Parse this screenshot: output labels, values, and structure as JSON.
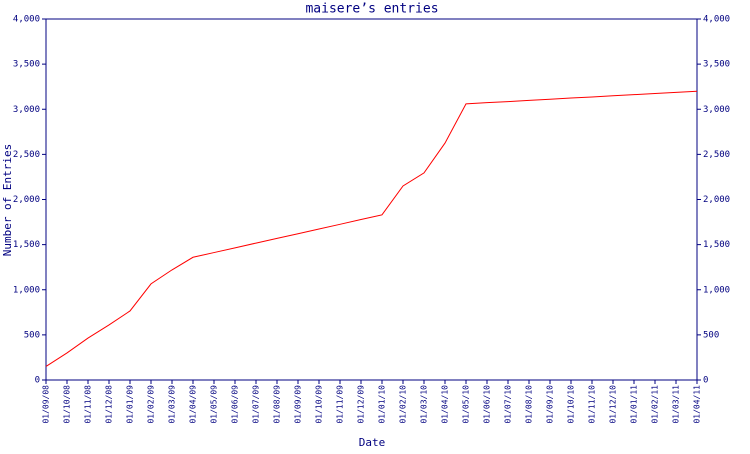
{
  "chart_data": {
    "type": "line",
    "title": "maisere’s entries",
    "x_label": "Date",
    "y_label": "Number of Entries",
    "categories": [
      "01/09/08",
      "01/10/08",
      "01/11/08",
      "01/12/08",
      "01/01/09",
      "01/02/09",
      "01/03/09",
      "01/04/09",
      "01/05/09",
      "01/06/09",
      "01/07/09",
      "01/08/09",
      "01/09/09",
      "01/10/09",
      "01/11/09",
      "01/12/09",
      "01/01/10",
      "01/02/10",
      "01/03/10",
      "01/04/10",
      "01/05/10",
      "01/06/10",
      "01/07/10",
      "01/08/10",
      "01/09/10",
      "01/10/10",
      "01/11/10",
      "01/12/10",
      "01/01/11",
      "01/02/11",
      "01/03/11",
      "01/04/11"
    ],
    "series": [
      {
        "name": "entries",
        "color": "#ff0000",
        "values": [
          150,
          300,
          465,
          610,
          765,
          1065,
          1220,
          1360,
          1412,
          1464,
          1517,
          1569,
          1621,
          1673,
          1725,
          1778,
          1830,
          2150,
          2295,
          2625,
          3060,
          3073,
          3085,
          3098,
          3111,
          3124,
          3136,
          3149,
          3162,
          3175,
          3187,
          3200
        ]
      }
    ],
    "ylim": [
      0,
      4000
    ],
    "yticks": [
      0,
      500,
      {
        "value": 1000,
        "label": "1,000"
      },
      {
        "value": 1500,
        "label": "1,500"
      },
      {
        "value": 2000,
        "label": "2,000"
      },
      {
        "value": 2500,
        "label": "2,500"
      },
      {
        "value": 3000,
        "label": "3,000"
      },
      {
        "value": 3500,
        "label": "3,500"
      },
      {
        "value": 4000,
        "label": "4,000"
      }
    ],
    "axis_color": "#000080",
    "grid": false
  }
}
